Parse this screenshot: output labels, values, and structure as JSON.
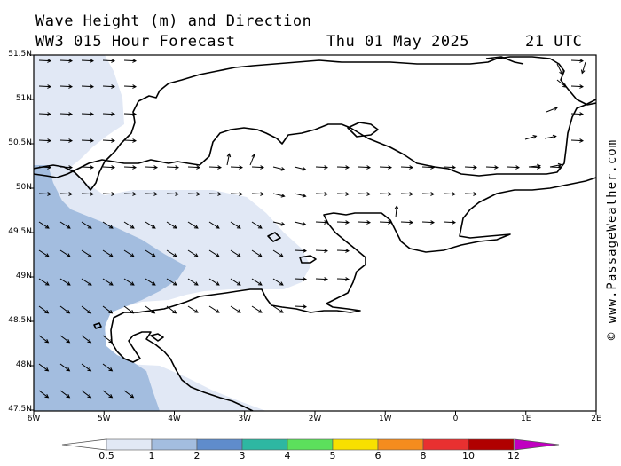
{
  "header": {
    "title": "Wave Height (m) and Direction",
    "model": "WW3 015 Hour Forecast",
    "date": "Thu 01 May 2025",
    "time": "21 UTC"
  },
  "credit": "© www.PassageWeather.com",
  "map": {
    "lon_range": [
      -6,
      2
    ],
    "lat_range": [
      47.5,
      51.5
    ],
    "lat_labels": [
      "51.5N",
      "51N",
      "50.5N",
      "50N",
      "49.5N",
      "49N",
      "48.5N",
      "48N",
      "47.5N"
    ],
    "lon_labels": [
      "6W",
      "5W",
      "4W",
      "3W",
      "2W",
      "1W",
      "0",
      "1E",
      "2E"
    ]
  },
  "colorbar": {
    "labels": [
      "0.5",
      "1",
      "2",
      "3",
      "4",
      "5",
      "6",
      "8",
      "10",
      "12"
    ],
    "colors": [
      "#e1e8f5",
      "#a3bddf",
      "#5f8ccc",
      "#2eb7a2",
      "#5ce05c",
      "#f8e000",
      "#f58c1e",
      "#e83030",
      "#b00000",
      "#c000c0"
    ]
  },
  "wave_colors": {
    "light": "#e1e8f5",
    "medium": "#a3bddf"
  }
}
